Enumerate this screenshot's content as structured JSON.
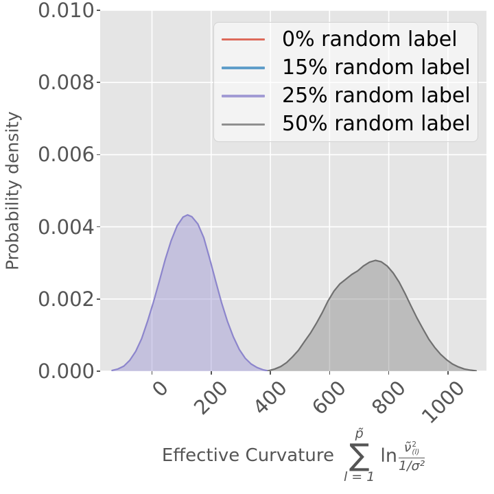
{
  "figure": {
    "background": "#ffffff",
    "plot_background": "#e5e5e5",
    "grid_color": "#ffffff",
    "axis_text_color": "#555555",
    "legend_text_color": "#000000"
  },
  "ylabel": "Probability density",
  "xlabel": {
    "prefix": "Effective Curvature",
    "sum_upper": "p̃",
    "sum_symbol": "∑",
    "sum_lower": "l = 1",
    "ln": "ln",
    "frac_num_base": "ν̃",
    "frac_num_sup": "2",
    "frac_num_sub": "(l)",
    "frac_den": "1/σ²"
  },
  "legend": {
    "items": [
      {
        "label": "0% random label",
        "color": "#dd6a5a"
      },
      {
        "label": "15% random label",
        "color": "#5f9dc9"
      },
      {
        "label": "25% random label",
        "color": "#a29bd4"
      },
      {
        "label": "50% random label",
        "color": "#8f8f8f"
      }
    ]
  },
  "chart_data": {
    "type": "area",
    "title": "",
    "xlabel": "Effective Curvature ∑_{l=1}^{p̃} ln( ν̃²_(l) / (1/σ²) )",
    "ylabel": "Probability density",
    "xlim": [
      -175,
      1130
    ],
    "ylim": [
      0,
      0.01
    ],
    "xticks": [
      0,
      200,
      400,
      600,
      800,
      1000
    ],
    "ytick_values": [
      0,
      0.002,
      0.004,
      0.006,
      0.008,
      0.01
    ],
    "ytick_labels": [
      "0.000",
      "0.002",
      "0.004",
      "0.006",
      "0.008",
      "0.010"
    ],
    "grid": true,
    "legend_position": "upper right",
    "series": [
      {
        "name": "0% random label",
        "color": "#dd6a5a",
        "line_color": "#dd6a5a",
        "visible_curve": false,
        "points": []
      },
      {
        "name": "15% random label",
        "color": "#5f9dc9",
        "line_color": "#5f9dc9",
        "visible_curve": false,
        "points": []
      },
      {
        "name": "25% random label",
        "color": "#a29bd4",
        "line_color": "#8c85cc",
        "fill": "rgba(150,143,209,0.42)",
        "visible_curve": true,
        "peak_x": 120,
        "peak_density": 0.00433,
        "points": [
          [
            -135,
            2e-05
          ],
          [
            -115,
            6e-05
          ],
          [
            -95,
            0.00014
          ],
          [
            -75,
            0.0003
          ],
          [
            -55,
            0.00055
          ],
          [
            -35,
            0.0009
          ],
          [
            -15,
            0.00138
          ],
          [
            5,
            0.00192
          ],
          [
            25,
            0.0025
          ],
          [
            45,
            0.0031
          ],
          [
            65,
            0.00362
          ],
          [
            85,
            0.00403
          ],
          [
            105,
            0.00427
          ],
          [
            120,
            0.00433
          ],
          [
            135,
            0.00428
          ],
          [
            155,
            0.00408
          ],
          [
            175,
            0.0037
          ],
          [
            195,
            0.00312
          ],
          [
            215,
            0.0025
          ],
          [
            235,
            0.0019
          ],
          [
            255,
            0.00138
          ],
          [
            275,
            0.00095
          ],
          [
            295,
            0.0006
          ],
          [
            315,
            0.00036
          ],
          [
            335,
            0.0002
          ],
          [
            355,
            0.0001
          ],
          [
            375,
            4e-05
          ],
          [
            392,
            1e-05
          ]
        ]
      },
      {
        "name": "50% random label",
        "color": "#8f8f8f",
        "line_color": "#707070",
        "fill": "rgba(128,128,128,0.40)",
        "visible_curve": true,
        "peak_x": 755,
        "peak_density": 0.00307,
        "points": [
          [
            392,
            1e-05
          ],
          [
            415,
            6e-05
          ],
          [
            435,
            0.00013
          ],
          [
            455,
            0.00024
          ],
          [
            475,
            0.0004
          ],
          [
            495,
            0.00058
          ],
          [
            515,
            0.00082
          ],
          [
            535,
            0.00105
          ],
          [
            555,
            0.00132
          ],
          [
            575,
            0.00162
          ],
          [
            595,
            0.00195
          ],
          [
            615,
            0.00222
          ],
          [
            635,
            0.00242
          ],
          [
            655,
            0.00255
          ],
          [
            675,
            0.00268
          ],
          [
            695,
            0.00278
          ],
          [
            715,
            0.00292
          ],
          [
            735,
            0.00302
          ],
          [
            755,
            0.00307
          ],
          [
            775,
            0.00303
          ],
          [
            795,
            0.00291
          ],
          [
            815,
            0.00272
          ],
          [
            835,
            0.00247
          ],
          [
            855,
            0.00215
          ],
          [
            875,
            0.00181
          ],
          [
            895,
            0.00148
          ],
          [
            915,
            0.00118
          ],
          [
            935,
            0.00089
          ],
          [
            955,
            0.00066
          ],
          [
            975,
            0.00047
          ],
          [
            995,
            0.00032
          ],
          [
            1015,
            0.0002
          ],
          [
            1035,
            0.00012
          ],
          [
            1055,
            6e-05
          ],
          [
            1075,
            3e-05
          ],
          [
            1095,
            1e-05
          ]
        ]
      }
    ]
  }
}
